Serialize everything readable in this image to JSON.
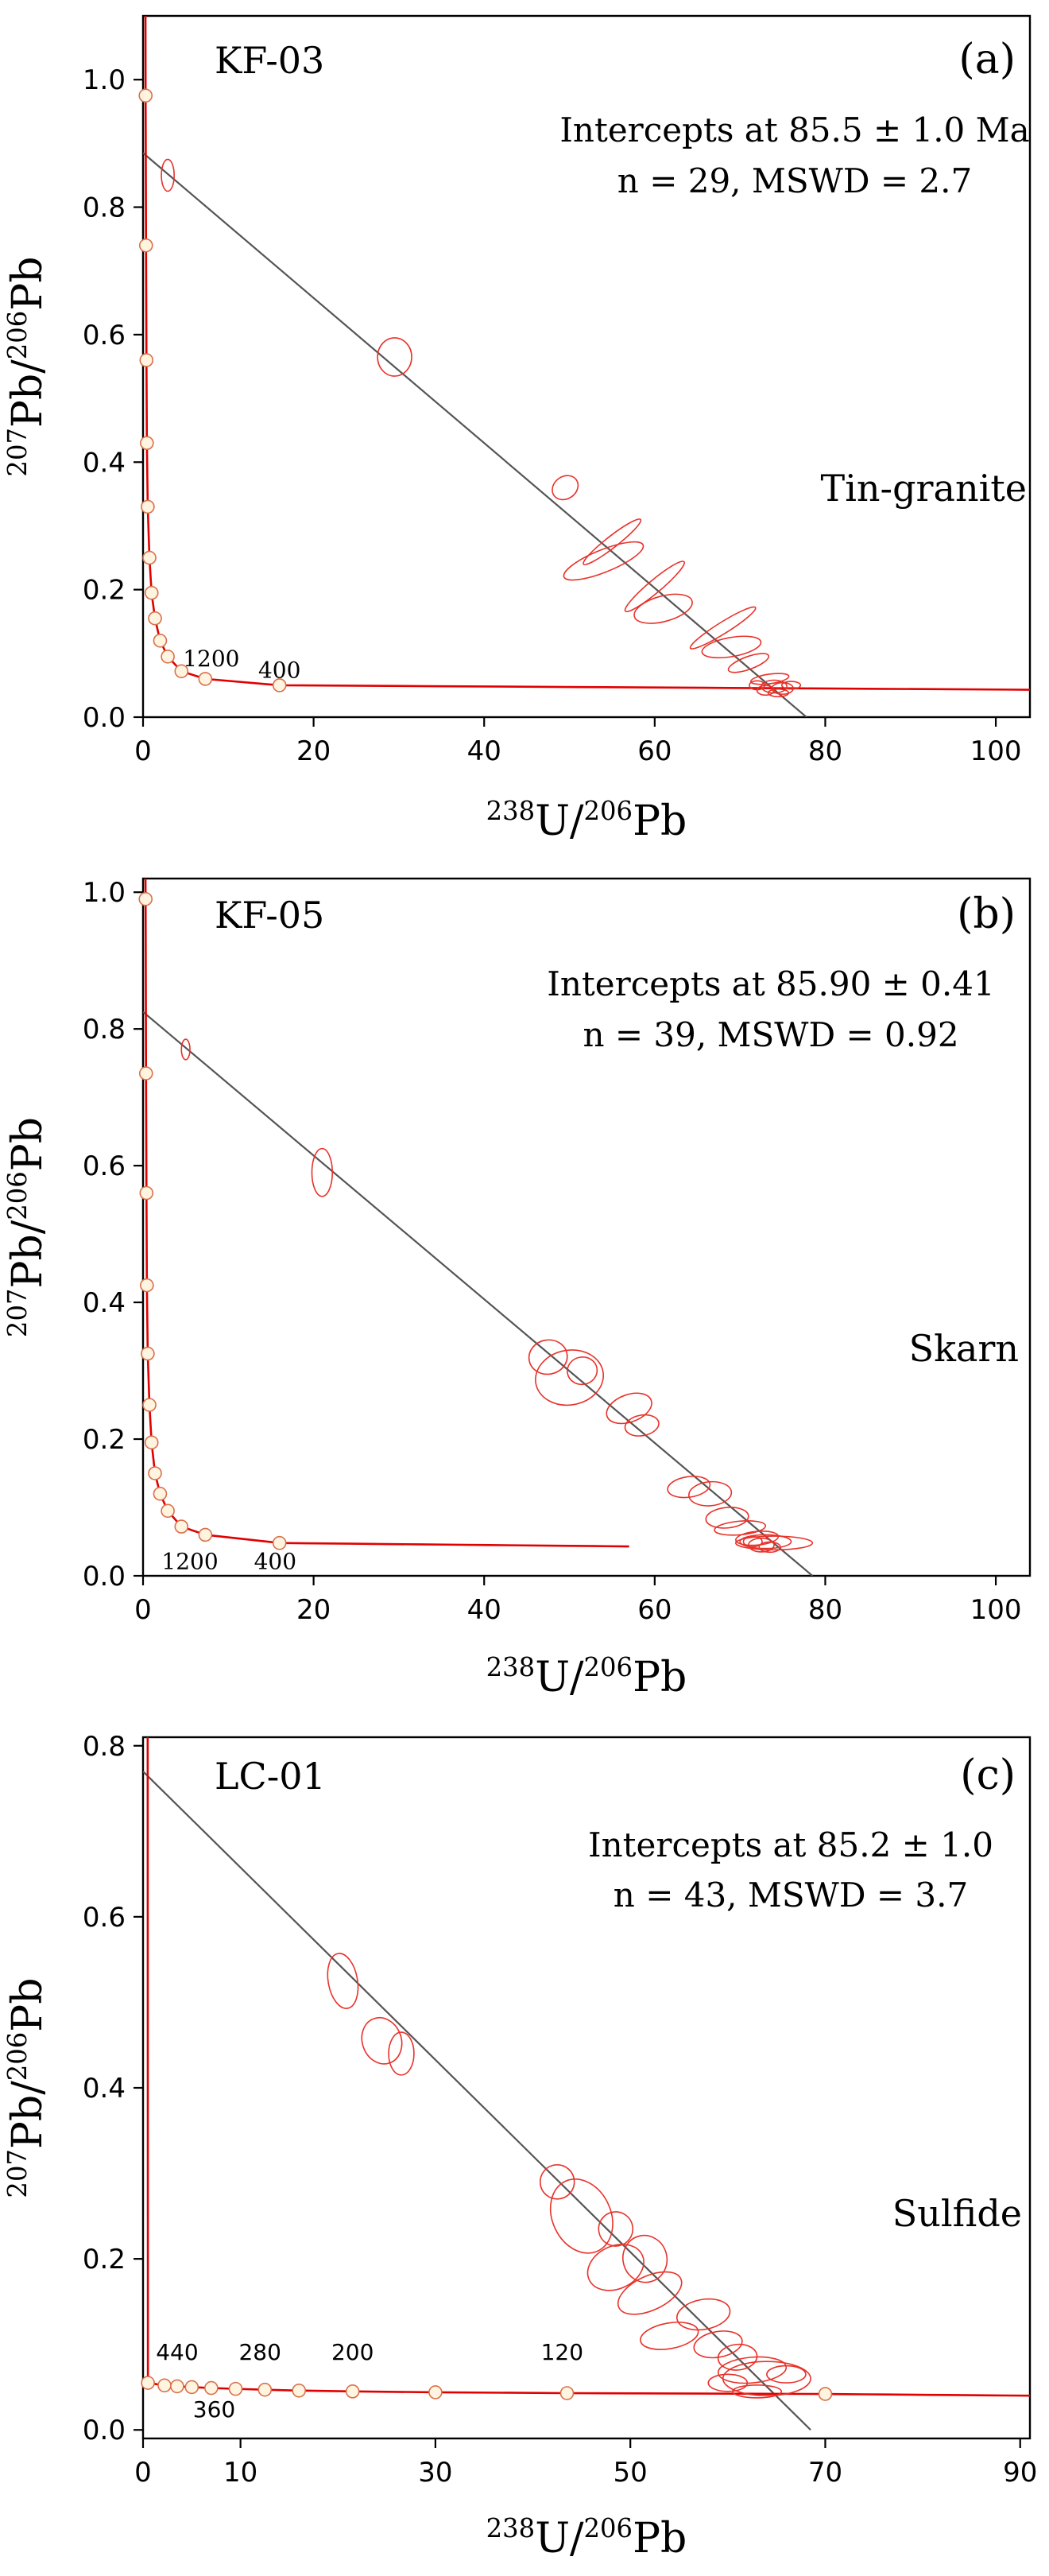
{
  "figure": {
    "colors": {
      "frame": "#000000",
      "concordia": "#e00000",
      "ellipse": "#e8322a",
      "regression": "#555555",
      "marker_fill": "#fff4e0",
      "marker_stroke": "#d8704a"
    }
  },
  "chart_data": [
    {
      "panel": "a",
      "type": "scatter",
      "sample_label": "KF-03",
      "panel_label": "(a)",
      "annotation_line1": "Intercepts at 85.5 ± 1.0 Ma",
      "annotation_line2": "n = 29, MSWD = 2.7",
      "rock_label": "Tin-granite",
      "ylabel": {
        "sup1": "207",
        "base1": "Pb/",
        "sup2": "206",
        "base2": "Pb"
      },
      "xlabel": {
        "sup1": "238",
        "base1": "U/",
        "sup2": "206",
        "base2": "Pb"
      },
      "xlim": [
        0,
        104
      ],
      "ylim": [
        0,
        1.1
      ],
      "x_ticks": [
        0,
        20,
        40,
        60,
        80,
        100
      ],
      "y_ticks": [
        0.0,
        0.2,
        0.4,
        0.6,
        0.8,
        1.0
      ],
      "y_tick_labels": [
        "0.0",
        "0.2",
        "0.4",
        "0.6",
        "0.8",
        "1.0"
      ],
      "regression": {
        "y_intercept": 0.885,
        "x_intercept": 77.8
      },
      "concordia_end_x": 104,
      "age_markers": [
        {
          "x": 0.3,
          "y": 0.975
        },
        {
          "x": 0.35,
          "y": 0.74
        },
        {
          "x": 0.4,
          "y": 0.56
        },
        {
          "x": 0.45,
          "y": 0.43
        },
        {
          "x": 0.55,
          "y": 0.33
        },
        {
          "x": 0.75,
          "y": 0.25
        },
        {
          "x": 1.0,
          "y": 0.195
        },
        {
          "x": 1.4,
          "y": 0.155
        },
        {
          "x": 2.0,
          "y": 0.12
        },
        {
          "x": 2.9,
          "y": 0.095
        },
        {
          "x": 4.5,
          "y": 0.072
        },
        {
          "x": 7.3,
          "y": 0.06
        },
        {
          "x": 16,
          "y": 0.05
        }
      ],
      "age_labels": [
        {
          "text": "1200",
          "x": 8,
          "y": 0.08
        },
        {
          "text": "400",
          "x": 16,
          "y": 0.062
        }
      ],
      "ellipses": [
        {
          "x": 2.9,
          "y": 0.85,
          "w": 1.5,
          "h": 0.05,
          "angle": 0
        },
        {
          "x": 29.5,
          "y": 0.565,
          "w": 4,
          "h": 0.06,
          "angle": 0
        },
        {
          "x": 49.5,
          "y": 0.36,
          "w": 3.2,
          "h": 0.035,
          "angle": -35
        },
        {
          "x": 55,
          "y": 0.275,
          "w": 8.5,
          "h": 0.018,
          "angle": -38
        },
        {
          "x": 54,
          "y": 0.245,
          "w": 10,
          "h": 0.035,
          "angle": -22
        },
        {
          "x": 60,
          "y": 0.205,
          "w": 9,
          "h": 0.02,
          "angle": -40
        },
        {
          "x": 61,
          "y": 0.17,
          "w": 7,
          "h": 0.04,
          "angle": -15
        },
        {
          "x": 68,
          "y": 0.14,
          "w": 9,
          "h": 0.018,
          "angle": -32
        },
        {
          "x": 69,
          "y": 0.11,
          "w": 7,
          "h": 0.03,
          "angle": -10
        },
        {
          "x": 71,
          "y": 0.085,
          "w": 5,
          "h": 0.02,
          "angle": -20
        },
        {
          "x": 73.5,
          "y": 0.06,
          "w": 4.5,
          "h": 0.015,
          "angle": -8
        },
        {
          "x": 74,
          "y": 0.048,
          "w": 3,
          "h": 0.02,
          "angle": 0
        },
        {
          "x": 75,
          "y": 0.045,
          "w": 2.5,
          "h": 0.018,
          "angle": 0
        },
        {
          "x": 73,
          "y": 0.042,
          "w": 2,
          "h": 0.015,
          "angle": 0
        },
        {
          "x": 76,
          "y": 0.05,
          "w": 2.2,
          "h": 0.012,
          "angle": 0
        },
        {
          "x": 72,
          "y": 0.05,
          "w": 1.8,
          "h": 0.014,
          "angle": 0
        },
        {
          "x": 74.5,
          "y": 0.038,
          "w": 2.4,
          "h": 0.012,
          "angle": 0
        }
      ]
    },
    {
      "panel": "b",
      "type": "scatter",
      "sample_label": "KF-05",
      "panel_label": "(b)",
      "annotation_line1": "Intercepts at 85.90 ± 0.41",
      "annotation_line2": "n = 39, MSWD = 0.92",
      "rock_label": "Skarn",
      "ylabel": {
        "sup1": "207",
        "base1": "Pb/",
        "sup2": "206",
        "base2": "Pb"
      },
      "xlabel": {
        "sup1": "238",
        "base1": "U/",
        "sup2": "206",
        "base2": "Pb"
      },
      "xlim": [
        0,
        104
      ],
      "ylim": [
        0,
        1.02
      ],
      "x_ticks": [
        0,
        20,
        40,
        60,
        80,
        100
      ],
      "y_ticks": [
        0.0,
        0.2,
        0.4,
        0.6,
        0.8,
        1.0
      ],
      "y_tick_labels": [
        "0.0",
        "0.2",
        "0.4",
        "0.6",
        "0.8",
        "1.0"
      ],
      "regression": {
        "y_intercept": 0.825,
        "x_intercept": 78.5
      },
      "concordia_end_x": 57,
      "age_markers": [
        {
          "x": 0.3,
          "y": 0.99
        },
        {
          "x": 0.35,
          "y": 0.735
        },
        {
          "x": 0.4,
          "y": 0.56
        },
        {
          "x": 0.45,
          "y": 0.425
        },
        {
          "x": 0.55,
          "y": 0.325
        },
        {
          "x": 0.75,
          "y": 0.25
        },
        {
          "x": 1.0,
          "y": 0.195
        },
        {
          "x": 1.4,
          "y": 0.15
        },
        {
          "x": 2.0,
          "y": 0.12
        },
        {
          "x": 2.9,
          "y": 0.095
        },
        {
          "x": 4.5,
          "y": 0.072
        },
        {
          "x": 7.3,
          "y": 0.06
        },
        {
          "x": 16,
          "y": 0.048
        }
      ],
      "age_labels": [
        {
          "text": "1200",
          "x": 5.5,
          "y": 0.01
        },
        {
          "text": "400",
          "x": 15.5,
          "y": 0.01
        }
      ],
      "ellipses": [
        {
          "x": 5,
          "y": 0.77,
          "w": 1,
          "h": 0.03,
          "angle": 0
        },
        {
          "x": 21,
          "y": 0.59,
          "w": 2.4,
          "h": 0.07,
          "angle": 0
        },
        {
          "x": 47.5,
          "y": 0.32,
          "w": 4.5,
          "h": 0.05,
          "angle": -10
        },
        {
          "x": 50,
          "y": 0.29,
          "w": 8,
          "h": 0.08,
          "angle": -10
        },
        {
          "x": 51.5,
          "y": 0.3,
          "w": 3.5,
          "h": 0.04,
          "angle": -10
        },
        {
          "x": 57,
          "y": 0.245,
          "w": 5.5,
          "h": 0.04,
          "angle": -20
        },
        {
          "x": 58.5,
          "y": 0.22,
          "w": 4,
          "h": 0.03,
          "angle": -10
        },
        {
          "x": 64,
          "y": 0.13,
          "w": 5,
          "h": 0.03,
          "angle": -8
        },
        {
          "x": 66.5,
          "y": 0.12,
          "w": 5,
          "h": 0.035,
          "angle": -5
        },
        {
          "x": 68.5,
          "y": 0.085,
          "w": 5,
          "h": 0.03,
          "angle": -5
        },
        {
          "x": 70,
          "y": 0.07,
          "w": 6,
          "h": 0.02,
          "angle": -5
        },
        {
          "x": 72,
          "y": 0.055,
          "w": 5,
          "h": 0.02,
          "angle": -5
        },
        {
          "x": 73,
          "y": 0.05,
          "w": 6,
          "h": 0.02,
          "angle": 0
        },
        {
          "x": 74,
          "y": 0.048,
          "w": 9,
          "h": 0.02,
          "angle": 0
        },
        {
          "x": 72.5,
          "y": 0.045,
          "w": 3,
          "h": 0.02,
          "angle": 0
        },
        {
          "x": 73.5,
          "y": 0.042,
          "w": 2.5,
          "h": 0.015,
          "angle": 0
        },
        {
          "x": 71.5,
          "y": 0.05,
          "w": 2.2,
          "h": 0.015,
          "angle": 0
        }
      ]
    },
    {
      "panel": "c",
      "type": "scatter",
      "sample_label": "LC-01",
      "panel_label": "(c)",
      "annotation_line1": "Intercepts at 85.2 ± 1.0",
      "annotation_line2": "n = 43, MSWD = 3.7",
      "rock_label": "Sulfide",
      "ylabel": {
        "sup1": "207",
        "base1": "Pb/",
        "sup2": "206",
        "base2": "Pb"
      },
      "xlabel": {
        "sup1": "238",
        "base1": "U/",
        "sup2": "206",
        "base2": "Pb"
      },
      "xlim": [
        0,
        91
      ],
      "ylim": [
        -0.01,
        0.81
      ],
      "x_ticks": [
        0,
        10,
        30,
        50,
        70,
        90
      ],
      "y_ticks": [
        0.0,
        0.2,
        0.4,
        0.6,
        0.8
      ],
      "y_tick_labels": [
        "0.0",
        "0.2",
        "0.4",
        "0.6",
        "0.8"
      ],
      "regression": {
        "y_intercept": 0.77,
        "x_intercept": 68.5
      },
      "concordia_end_x": 91,
      "age_markers": [
        {
          "x": 0.5,
          "y": 0.055
        },
        {
          "x": 2.2,
          "y": 0.052
        },
        {
          "x": 3.5,
          "y": 0.051
        },
        {
          "x": 5,
          "y": 0.05
        },
        {
          "x": 7,
          "y": 0.049
        },
        {
          "x": 9.5,
          "y": 0.048
        },
        {
          "x": 12.5,
          "y": 0.047
        },
        {
          "x": 16,
          "y": 0.046
        },
        {
          "x": 21.5,
          "y": 0.045
        },
        {
          "x": 30,
          "y": 0.044
        },
        {
          "x": 43.5,
          "y": 0.043
        },
        {
          "x": 70,
          "y": 0.042
        }
      ],
      "age_labels": [
        {
          "text": "440",
          "x": 3.5,
          "y": 0.082
        },
        {
          "text": "360",
          "x": 7.3,
          "y": 0.015
        },
        {
          "text": "280",
          "x": 12,
          "y": 0.082
        },
        {
          "text": "200",
          "x": 21.5,
          "y": 0.082
        },
        {
          "text": "120",
          "x": 43,
          "y": 0.082
        }
      ],
      "ellipses": [
        {
          "x": 20.5,
          "y": 0.525,
          "w": 3,
          "h": 0.065,
          "angle": -10
        },
        {
          "x": 24.5,
          "y": 0.455,
          "w": 4,
          "h": 0.055,
          "angle": -20
        },
        {
          "x": 26.5,
          "y": 0.44,
          "w": 2.6,
          "h": 0.05,
          "angle": 0
        },
        {
          "x": 42.5,
          "y": 0.29,
          "w": 3.5,
          "h": 0.04,
          "angle": -5
        },
        {
          "x": 45,
          "y": 0.25,
          "w": 6,
          "h": 0.09,
          "angle": -25
        },
        {
          "x": 48.5,
          "y": 0.235,
          "w": 3.5,
          "h": 0.04,
          "angle": -10
        },
        {
          "x": 51.5,
          "y": 0.2,
          "w": 4.5,
          "h": 0.055,
          "angle": -15
        },
        {
          "x": 48.5,
          "y": 0.19,
          "w": 6,
          "h": 0.05,
          "angle": -25
        },
        {
          "x": 52,
          "y": 0.16,
          "w": 7,
          "h": 0.04,
          "angle": -25
        },
        {
          "x": 54,
          "y": 0.11,
          "w": 6,
          "h": 0.03,
          "angle": -10
        },
        {
          "x": 57.5,
          "y": 0.135,
          "w": 5.5,
          "h": 0.035,
          "angle": -10
        },
        {
          "x": 59,
          "y": 0.1,
          "w": 5,
          "h": 0.03,
          "angle": -10
        },
        {
          "x": 61,
          "y": 0.085,
          "w": 4,
          "h": 0.03,
          "angle": -5
        },
        {
          "x": 62.5,
          "y": 0.07,
          "w": 7,
          "h": 0.03,
          "angle": -5
        },
        {
          "x": 64,
          "y": 0.06,
          "w": 9,
          "h": 0.04,
          "angle": 0
        },
        {
          "x": 60,
          "y": 0.055,
          "w": 4,
          "h": 0.02,
          "angle": 0
        },
        {
          "x": 66,
          "y": 0.065,
          "w": 4,
          "h": 0.02,
          "angle": 0
        },
        {
          "x": 63,
          "y": 0.045,
          "w": 5,
          "h": 0.015,
          "angle": 0
        }
      ]
    }
  ]
}
